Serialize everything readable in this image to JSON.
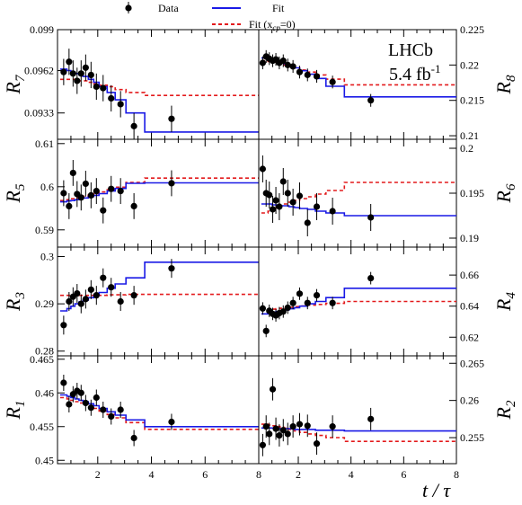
{
  "legend": {
    "data_label": "Data",
    "fit_label": "Fit",
    "fit_null_label": "Fit (x",
    "fit_null_sub": "cp",
    "fit_null_end": "=0)"
  },
  "annotation": {
    "experiment": "LHCb",
    "lumi_value": "5.4 fb",
    "lumi_sup": "-1"
  },
  "xaxis_title": "t / τ",
  "colors": {
    "data": "#000000",
    "fit": "#1a1ae6",
    "fit_null": "#e31a1c"
  },
  "chart_data": [
    {
      "id": "R7",
      "type": "scatter",
      "label_main": "R",
      "label_sub": "7",
      "xlim": [
        0.5,
        8
      ],
      "ylim": [
        0.0915,
        0.099
      ],
      "yticks": [
        0.0933,
        0.0962,
        0.099
      ],
      "ytick_labels": [
        "0.0933",
        "0.0962",
        "0.099"
      ],
      "xticks": [
        2,
        4,
        6,
        8
      ],
      "xtick_labels": [],
      "data": {
        "x": [
          0.73,
          0.93,
          1.08,
          1.23,
          1.38,
          1.55,
          1.75,
          1.95,
          2.2,
          2.5,
          2.85,
          3.35,
          4.75
        ],
        "y": [
          0.0961,
          0.0968,
          0.096,
          0.0955,
          0.096,
          0.0964,
          0.0959,
          0.0951,
          0.095,
          0.0943,
          0.0939,
          0.0924,
          0.0929
        ],
        "err": [
          0.0009,
          0.0009,
          0.0009,
          0.0009,
          0.0009,
          0.0009,
          0.0009,
          0.0009,
          0.0009,
          0.0009,
          0.0009,
          0.0009,
          0.0009
        ]
      },
      "fit": {
        "edges": [
          0.6,
          0.85,
          1.0,
          1.15,
          1.3,
          1.45,
          1.65,
          1.85,
          2.05,
          2.35,
          2.65,
          3.05,
          3.75,
          8.0
        ],
        "values": [
          0.0963,
          0.0962,
          0.0961,
          0.096,
          0.0959,
          0.0958,
          0.0956,
          0.0954,
          0.0951,
          0.0947,
          0.0942,
          0.0933,
          0.092
        ]
      },
      "fit_null": {
        "edges": [
          0.6,
          0.85,
          1.0,
          1.15,
          1.3,
          1.45,
          1.65,
          1.85,
          2.05,
          2.35,
          2.65,
          3.05,
          3.75,
          8.0
        ],
        "values": [
          0.0956,
          0.0956,
          0.0956,
          0.0955,
          0.0955,
          0.0955,
          0.0954,
          0.0953,
          0.0952,
          0.0951,
          0.0949,
          0.0947,
          0.0945
        ]
      }
    },
    {
      "id": "R8",
      "type": "scatter",
      "label_main": "R",
      "label_sub": "8",
      "xlim": [
        0.5,
        8
      ],
      "ylim": [
        0.2095,
        0.225
      ],
      "yticks": [
        0.21,
        0.215,
        0.22,
        0.225
      ],
      "ytick_labels": [
        "0.21",
        "0.215",
        "0.22",
        "0.225"
      ],
      "xticks": [
        2,
        4,
        6,
        8
      ],
      "xtick_labels": [],
      "data": {
        "x": [
          0.65,
          0.78,
          0.9,
          1.03,
          1.15,
          1.28,
          1.43,
          1.6,
          1.8,
          2.05,
          2.35,
          2.7,
          3.3,
          4.75
        ],
        "y": [
          0.2203,
          0.2212,
          0.2209,
          0.2206,
          0.2208,
          0.2203,
          0.2206,
          0.22,
          0.2198,
          0.219,
          0.2186,
          0.2184,
          0.2176,
          0.215
        ],
        "err": [
          0.0009,
          0.0009,
          0.0009,
          0.0009,
          0.0009,
          0.0009,
          0.0009,
          0.0009,
          0.0009,
          0.0009,
          0.0009,
          0.0009,
          0.0009,
          0.0009
        ]
      },
      "fit": {
        "edges": [
          0.6,
          0.85,
          1.0,
          1.15,
          1.3,
          1.45,
          1.65,
          1.85,
          2.05,
          2.35,
          2.65,
          3.05,
          3.75,
          8.0
        ],
        "values": [
          0.221,
          0.2209,
          0.2207,
          0.2206,
          0.2204,
          0.2202,
          0.2199,
          0.2196,
          0.2192,
          0.2187,
          0.2181,
          0.217,
          0.2155
        ]
      },
      "fit_null": {
        "edges": [
          0.6,
          0.85,
          1.0,
          1.15,
          1.3,
          1.45,
          1.65,
          1.85,
          2.05,
          2.35,
          2.65,
          3.05,
          3.75,
          8.0
        ],
        "values": [
          0.2206,
          0.2205,
          0.2204,
          0.2203,
          0.2202,
          0.22,
          0.2198,
          0.2196,
          0.2193,
          0.219,
          0.2186,
          0.218,
          0.2172
        ]
      }
    },
    {
      "id": "R5",
      "type": "scatter",
      "label_main": "R",
      "label_sub": "5",
      "xlim": [
        0.5,
        8
      ],
      "ylim": [
        0.586,
        0.611
      ],
      "yticks": [
        0.59,
        0.6,
        0.61
      ],
      "ytick_labels": [
        "0.59",
        "0.6",
        "0.61"
      ],
      "xticks": [
        2,
        4,
        6,
        8
      ],
      "xtick_labels": [],
      "data": {
        "x": [
          0.73,
          0.93,
          1.08,
          1.23,
          1.38,
          1.55,
          1.75,
          1.95,
          2.2,
          2.5,
          2.85,
          3.35,
          4.75
        ],
        "y": [
          0.5985,
          0.5955,
          0.6032,
          0.5983,
          0.5975,
          0.6007,
          0.598,
          0.599,
          0.5945,
          0.5995,
          0.599,
          0.5955,
          0.6008
        ],
        "err": [
          0.003,
          0.003,
          0.003,
          0.003,
          0.003,
          0.003,
          0.003,
          0.003,
          0.003,
          0.003,
          0.003,
          0.003,
          0.003
        ]
      },
      "fit": {
        "edges": [
          0.6,
          0.85,
          1.0,
          1.15,
          1.3,
          1.45,
          1.65,
          1.85,
          2.05,
          2.35,
          2.65,
          3.05,
          3.75,
          8.0
        ],
        "values": [
          0.5965,
          0.5967,
          0.5968,
          0.597,
          0.5972,
          0.5974,
          0.5977,
          0.598,
          0.5984,
          0.599,
          0.5996,
          0.6008,
          0.6009
        ]
      },
      "fit_null": {
        "edges": [
          0.6,
          0.85,
          1.0,
          1.15,
          1.3,
          1.45,
          1.65,
          1.85,
          2.05,
          2.35,
          2.65,
          3.05,
          3.75,
          8.0
        ],
        "values": [
          0.5968,
          0.597,
          0.5972,
          0.5974,
          0.5976,
          0.5978,
          0.5981,
          0.5984,
          0.5988,
          0.5993,
          0.5999,
          0.601,
          0.602
        ]
      }
    },
    {
      "id": "R6",
      "type": "scatter",
      "label_main": "R",
      "label_sub": "6",
      "xlim": [
        0.5,
        8
      ],
      "ylim": [
        0.189,
        0.201
      ],
      "yticks": [
        0.19,
        0.195,
        0.2
      ],
      "ytick_labels": [
        "0.19",
        "0.195",
        "0.2"
      ],
      "xticks": [
        2,
        4,
        6,
        8
      ],
      "xtick_labels": [],
      "data": {
        "x": [
          0.65,
          0.78,
          0.9,
          1.03,
          1.15,
          1.28,
          1.43,
          1.6,
          1.8,
          2.05,
          2.35,
          2.7,
          3.3,
          4.75
        ],
        "y": [
          0.1977,
          0.195,
          0.1948,
          0.1932,
          0.1942,
          0.1935,
          0.1963,
          0.195,
          0.194,
          0.1947,
          0.1917,
          0.1935,
          0.193,
          0.1923
        ],
        "err": [
          0.0015,
          0.0015,
          0.0015,
          0.0015,
          0.0015,
          0.0015,
          0.0015,
          0.0015,
          0.0015,
          0.0015,
          0.0015,
          0.0015,
          0.0015,
          0.0015
        ]
      },
      "fit": {
        "edges": [
          0.6,
          0.85,
          1.0,
          1.15,
          1.3,
          1.45,
          1.65,
          1.85,
          2.05,
          2.35,
          2.65,
          3.05,
          3.75,
          8.0
        ],
        "values": [
          0.1938,
          0.1938,
          0.1937,
          0.1937,
          0.1936,
          0.1936,
          0.1935,
          0.1934,
          0.1933,
          0.1932,
          0.193,
          0.1928,
          0.1925
        ]
      },
      "fit_null": {
        "edges": [
          0.6,
          0.85,
          1.0,
          1.15,
          1.3,
          1.45,
          1.65,
          1.85,
          2.05,
          2.35,
          2.65,
          3.05,
          3.75,
          8.0
        ],
        "values": [
          0.1928,
          0.193,
          0.1932,
          0.1934,
          0.1936,
          0.1938,
          0.194,
          0.1942,
          0.1944,
          0.1946,
          0.1949,
          0.1953,
          0.1962
        ]
      }
    },
    {
      "id": "R3",
      "type": "scatter",
      "label_main": "R",
      "label_sub": "3",
      "xlim": [
        0.5,
        8
      ],
      "ylim": [
        0.279,
        0.302
      ],
      "yticks": [
        0.28,
        0.29,
        0.3
      ],
      "ytick_labels": [
        "0.28",
        "0.29",
        "0.3"
      ],
      "xticks": [
        2,
        4,
        6,
        8
      ],
      "xtick_labels": [],
      "data": {
        "x": [
          0.73,
          0.93,
          1.08,
          1.23,
          1.38,
          1.55,
          1.75,
          1.95,
          2.2,
          2.5,
          2.85,
          3.35,
          4.75
        ],
        "y": [
          0.2855,
          0.2905,
          0.2915,
          0.2922,
          0.29,
          0.291,
          0.293,
          0.2918,
          0.2955,
          0.2935,
          0.2905,
          0.2918,
          0.2975
        ],
        "err": [
          0.002,
          0.002,
          0.002,
          0.002,
          0.002,
          0.002,
          0.002,
          0.002,
          0.002,
          0.002,
          0.002,
          0.002,
          0.002
        ]
      },
      "fit": {
        "edges": [
          0.6,
          0.85,
          1.0,
          1.15,
          1.3,
          1.45,
          1.65,
          1.85,
          2.05,
          2.35,
          2.65,
          3.05,
          3.75,
          8.0
        ],
        "values": [
          0.2885,
          0.289,
          0.2895,
          0.29,
          0.2904,
          0.2908,
          0.2913,
          0.2918,
          0.2924,
          0.2933,
          0.2942,
          0.2955,
          0.2988
        ]
      },
      "fit_null": {
        "edges": [
          0.6,
          0.85,
          1.0,
          1.15,
          1.3,
          1.45,
          1.65,
          1.85,
          2.05,
          2.35,
          2.65,
          3.05,
          3.75,
          8.0
        ],
        "values": [
          0.2918,
          0.2918,
          0.2918,
          0.2918,
          0.2918,
          0.2918,
          0.2918,
          0.2918,
          0.2918,
          0.2919,
          0.2919,
          0.292,
          0.292
        ]
      }
    },
    {
      "id": "R4",
      "type": "scatter",
      "label_main": "R",
      "label_sub": "4",
      "xlim": [
        0.5,
        8
      ],
      "ylim": [
        0.608,
        0.678
      ],
      "yticks": [
        0.62,
        0.64,
        0.66
      ],
      "ytick_labels": [
        "0.62",
        "0.64",
        "0.66"
      ],
      "xticks": [
        2,
        4,
        6,
        8
      ],
      "xtick_labels": [],
      "data": {
        "x": [
          0.65,
          0.78,
          0.9,
          1.03,
          1.15,
          1.28,
          1.43,
          1.6,
          1.8,
          2.05,
          2.35,
          2.7,
          3.3,
          4.75
        ],
        "y": [
          0.6385,
          0.624,
          0.637,
          0.635,
          0.634,
          0.6355,
          0.6365,
          0.639,
          0.642,
          0.648,
          0.642,
          0.647,
          0.642,
          0.658
        ],
        "err": [
          0.004,
          0.004,
          0.004,
          0.004,
          0.004,
          0.004,
          0.004,
          0.004,
          0.004,
          0.004,
          0.004,
          0.004,
          0.004,
          0.004
        ]
      },
      "fit": {
        "edges": [
          0.6,
          0.85,
          1.0,
          1.15,
          1.3,
          1.45,
          1.65,
          1.85,
          2.05,
          2.35,
          2.65,
          3.05,
          3.75,
          8.0
        ],
        "values": [
          0.635,
          0.6355,
          0.636,
          0.6365,
          0.637,
          0.6375,
          0.6383,
          0.639,
          0.64,
          0.6415,
          0.643,
          0.6455,
          0.6515
        ]
      },
      "fit_null": {
        "edges": [
          0.6,
          0.85,
          1.0,
          1.15,
          1.3,
          1.45,
          1.65,
          1.85,
          2.05,
          2.35,
          2.65,
          3.05,
          3.75,
          8.0
        ],
        "values": [
          0.6375,
          0.6377,
          0.638,
          0.6383,
          0.6386,
          0.6389,
          0.6393,
          0.6397,
          0.6401,
          0.6406,
          0.6411,
          0.6418,
          0.643
        ]
      }
    },
    {
      "id": "R1",
      "type": "scatter",
      "label_main": "R",
      "label_sub": "1",
      "xlim": [
        0.5,
        8
      ],
      "ylim": [
        0.4495,
        0.4655
      ],
      "yticks": [
        0.45,
        0.455,
        0.46,
        0.465
      ],
      "ytick_labels": [
        "0.45",
        "0.455",
        "0.46",
        "0.465"
      ],
      "xticks": [
        2,
        4,
        6,
        8
      ],
      "xtick_labels": [
        "2",
        "4",
        "6",
        "8"
      ],
      "data": {
        "x": [
          0.73,
          0.93,
          1.08,
          1.23,
          1.38,
          1.55,
          1.75,
          1.95,
          2.2,
          2.5,
          2.85,
          3.35,
          4.75
        ],
        "y": [
          0.4615,
          0.4583,
          0.4598,
          0.4603,
          0.46,
          0.4585,
          0.4578,
          0.4593,
          0.4575,
          0.4565,
          0.4575,
          0.4533,
          0.4557
        ],
        "err": [
          0.0012,
          0.0012,
          0.0012,
          0.0012,
          0.0012,
          0.0012,
          0.0012,
          0.0012,
          0.0012,
          0.0012,
          0.0012,
          0.0012,
          0.0012
        ]
      },
      "fit": {
        "edges": [
          0.6,
          0.85,
          1.0,
          1.15,
          1.3,
          1.45,
          1.65,
          1.85,
          2.05,
          2.35,
          2.65,
          3.05,
          3.75,
          8.0
        ],
        "values": [
          0.4597,
          0.4595,
          0.4593,
          0.4591,
          0.4589,
          0.4587,
          0.4584,
          0.4581,
          0.4577,
          0.4572,
          0.4567,
          0.456,
          0.455
        ]
      },
      "fit_null": {
        "edges": [
          0.6,
          0.85,
          1.0,
          1.15,
          1.3,
          1.45,
          1.65,
          1.85,
          2.05,
          2.35,
          2.65,
          3.05,
          3.75,
          8.0
        ],
        "values": [
          0.4593,
          0.4591,
          0.4589,
          0.4587,
          0.4585,
          0.4583,
          0.458,
          0.4577,
          0.4573,
          0.4568,
          0.4563,
          0.4556,
          0.4546
        ]
      }
    },
    {
      "id": "R2",
      "type": "scatter",
      "label_main": "R",
      "label_sub": "2",
      "xlim": [
        0.5,
        8
      ],
      "ylim": [
        0.2515,
        0.266
      ],
      "yticks": [
        0.255,
        0.26,
        0.265
      ],
      "ytick_labels": [
        "0.255",
        "0.26",
        "0.265"
      ],
      "xticks": [
        2,
        4,
        6,
        8
      ],
      "xtick_labels": [
        "2",
        "4",
        "6",
        "8"
      ],
      "data": {
        "x": [
          0.65,
          0.78,
          0.9,
          1.03,
          1.15,
          1.28,
          1.43,
          1.6,
          1.8,
          2.05,
          2.35,
          2.7,
          3.3,
          4.75
        ],
        "y": [
          0.254,
          0.2565,
          0.2555,
          0.2615,
          0.2562,
          0.2553,
          0.256,
          0.2555,
          0.2565,
          0.2568,
          0.2566,
          0.2542,
          0.2565,
          0.2575
        ],
        "err": [
          0.0015,
          0.0015,
          0.0015,
          0.0015,
          0.0015,
          0.0015,
          0.0015,
          0.0015,
          0.0015,
          0.0015,
          0.0015,
          0.0015,
          0.0015,
          0.0015
        ]
      },
      "fit": {
        "edges": [
          0.6,
          0.85,
          1.0,
          1.15,
          1.3,
          1.45,
          1.65,
          1.85,
          2.05,
          2.35,
          2.65,
          3.05,
          3.75,
          8.0
        ],
        "values": [
          0.2563,
          0.2563,
          0.2563,
          0.2562,
          0.2562,
          0.2562,
          0.2562,
          0.2561,
          0.2561,
          0.2561,
          0.256,
          0.256,
          0.2559
        ]
      },
      "fit_null": {
        "edges": [
          0.6,
          0.85,
          1.0,
          1.15,
          1.3,
          1.45,
          1.65,
          1.85,
          2.05,
          2.35,
          2.65,
          3.05,
          3.75,
          8.0
        ],
        "values": [
          0.2568,
          0.2567,
          0.2566,
          0.2565,
          0.2564,
          0.2563,
          0.2561,
          0.2559,
          0.2557,
          0.2555,
          0.2553,
          0.255,
          0.2545
        ]
      }
    }
  ]
}
